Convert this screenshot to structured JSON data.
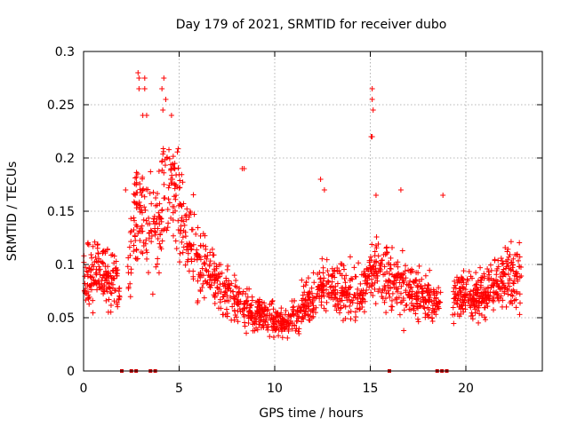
{
  "chart_data": {
    "type": "scatter",
    "title": "Day 179 of 2021, SRMTID for receiver dubo",
    "xlabel": "GPS time / hours",
    "ylabel": "SRMTID / TECUs",
    "xlim": [
      0,
      24
    ],
    "ylim": [
      0,
      0.3
    ],
    "xticks": [
      0,
      5,
      10,
      15,
      20
    ],
    "yticks": [
      0,
      0.05,
      0.1,
      0.15,
      0.2,
      0.25,
      0.3
    ],
    "xtick_labels": [
      "0",
      "5",
      "10",
      "15",
      "20"
    ],
    "ytick_labels": [
      "0",
      "0.05",
      "0.1",
      "0.15",
      "0.2",
      "0.25",
      "0.3"
    ],
    "grid": true,
    "marker": "+",
    "color": "#ff0000",
    "profile": [
      [
        0.0,
        0.085
      ],
      [
        0.5,
        0.09
      ],
      [
        1.0,
        0.09
      ],
      [
        1.5,
        0.085
      ],
      [
        1.9,
        0.08
      ],
      [
        2.3,
        0.09
      ],
      [
        2.8,
        0.16
      ],
      [
        3.3,
        0.13
      ],
      [
        3.8,
        0.13
      ],
      [
        4.3,
        0.18
      ],
      [
        4.8,
        0.17
      ],
      [
        5.3,
        0.13
      ],
      [
        5.8,
        0.11
      ],
      [
        6.5,
        0.09
      ],
      [
        7.5,
        0.075
      ],
      [
        8.5,
        0.06
      ],
      [
        9.5,
        0.05
      ],
      [
        10.5,
        0.045
      ],
      [
        11.5,
        0.06
      ],
      [
        12.5,
        0.08
      ],
      [
        13.5,
        0.075
      ],
      [
        14.5,
        0.07
      ],
      [
        15.3,
        0.1
      ],
      [
        16.0,
        0.085
      ],
      [
        17.0,
        0.075
      ],
      [
        18.0,
        0.07
      ],
      [
        18.7,
        0.06
      ],
      [
        19.5,
        0.07
      ],
      [
        20.5,
        0.07
      ],
      [
        21.5,
        0.08
      ],
      [
        22.5,
        0.09
      ],
      [
        22.9,
        0.085
      ]
    ],
    "gaps": [
      [
        1.9,
        2.3
      ],
      [
        2.5,
        2.6
      ],
      [
        18.7,
        19.3
      ]
    ],
    "outliers": [
      [
        2.85,
        0.28
      ],
      [
        2.9,
        0.275
      ],
      [
        3.2,
        0.275
      ],
      [
        2.9,
        0.265
      ],
      [
        3.2,
        0.265
      ],
      [
        4.2,
        0.275
      ],
      [
        4.1,
        0.265
      ],
      [
        4.3,
        0.255
      ],
      [
        4.15,
        0.245
      ],
      [
        3.1,
        0.24
      ],
      [
        3.3,
        0.24
      ],
      [
        4.6,
        0.24
      ],
      [
        15.1,
        0.265
      ],
      [
        15.1,
        0.255
      ],
      [
        15.15,
        0.245
      ],
      [
        15.05,
        0.22
      ],
      [
        15.1,
        0.22
      ],
      [
        8.3,
        0.19
      ],
      [
        8.4,
        0.19
      ],
      [
        12.4,
        0.18
      ],
      [
        12.6,
        0.17
      ],
      [
        15.3,
        0.165
      ],
      [
        16.6,
        0.17
      ],
      [
        18.8,
        0.165
      ],
      [
        2.2,
        0.17
      ]
    ],
    "data_gaps_at_zero": [
      2.0,
      2.5,
      2.75,
      3.5,
      3.75,
      16.0,
      18.5,
      18.75,
      19.0
    ]
  }
}
